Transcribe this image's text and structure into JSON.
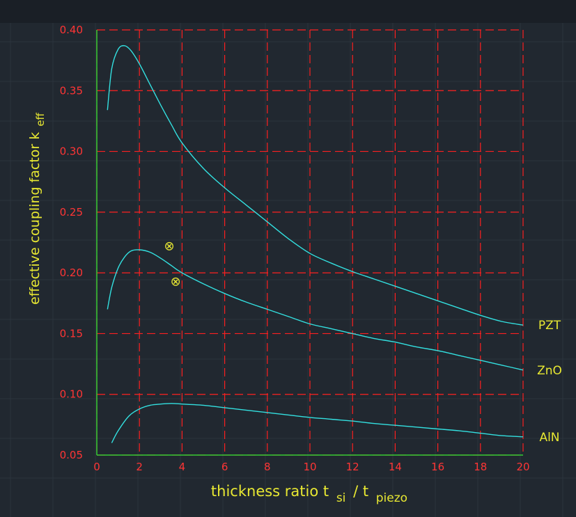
{
  "chart_data": {
    "type": "line",
    "xlabel": {
      "main": "thickness ratio t",
      "sub1": "si",
      "sep": "/ t",
      "sub2": "piezo"
    },
    "ylabel": {
      "main": "effective coupling factor k",
      "sub": "eff"
    },
    "xlim": [
      0,
      20
    ],
    "ylim": [
      0.05,
      0.4
    ],
    "x_ticks": [
      "0",
      "2",
      "4",
      "6",
      "8",
      "10",
      "12",
      "14",
      "16",
      "18",
      "20"
    ],
    "y_ticks": [
      "0.05",
      "0.10",
      "0.15",
      "0.20",
      "0.25",
      "0.30",
      "0.35",
      "0.40"
    ],
    "grid": true,
    "series": [
      {
        "name": "PZT",
        "color": "#33e0e0",
        "x": [
          0.5,
          0.7,
          1.0,
          1.3,
          1.6,
          2.0,
          2.5,
          3.0,
          3.5,
          4.0,
          5.0,
          6.0,
          7.0,
          8.0,
          9.0,
          10.0,
          11.0,
          12.0,
          13.0,
          14.0,
          15.0,
          16.0,
          17.0,
          18.0,
          19.0,
          20.0
        ],
        "y": [
          0.334,
          0.368,
          0.384,
          0.387,
          0.383,
          0.372,
          0.355,
          0.338,
          0.322,
          0.307,
          0.286,
          0.27,
          0.256,
          0.242,
          0.228,
          0.216,
          0.208,
          0.201,
          0.195,
          0.189,
          0.183,
          0.177,
          0.171,
          0.165,
          0.16,
          0.157
        ]
      },
      {
        "name": "ZnO",
        "color": "#33e0e0",
        "x": [
          0.5,
          0.7,
          1.0,
          1.3,
          1.6,
          2.0,
          2.5,
          3.0,
          3.5,
          4.0,
          5.0,
          6.0,
          7.0,
          8.0,
          9.0,
          10.0,
          11.0,
          12.0,
          13.0,
          14.0,
          15.0,
          16.0,
          17.0,
          18.0,
          19.0,
          20.0
        ],
        "y": [
          0.17,
          0.188,
          0.204,
          0.213,
          0.218,
          0.219,
          0.217,
          0.212,
          0.206,
          0.2,
          0.191,
          0.183,
          0.176,
          0.17,
          0.164,
          0.158,
          0.154,
          0.15,
          0.146,
          0.143,
          0.139,
          0.136,
          0.132,
          0.128,
          0.124,
          0.12
        ]
      },
      {
        "name": "AlN",
        "color": "#33e0e0",
        "x": [
          0.7,
          1.0,
          1.5,
          2.0,
          2.5,
          3.0,
          3.5,
          4.0,
          5.0,
          6.0,
          7.0,
          8.0,
          9.0,
          10.0,
          11.0,
          12.0,
          13.0,
          14.0,
          15.0,
          16.0,
          17.0,
          18.0,
          19.0,
          20.0
        ],
        "y": [
          0.06,
          0.07,
          0.082,
          0.088,
          0.091,
          0.092,
          0.0925,
          0.092,
          0.091,
          0.089,
          0.087,
          0.085,
          0.083,
          0.081,
          0.0795,
          0.078,
          0.076,
          0.0745,
          0.073,
          0.0715,
          0.07,
          0.068,
          0.066,
          0.065
        ]
      }
    ],
    "markers": [
      {
        "symbol": "⊗",
        "x": 3.4,
        "y": 0.222,
        "color": "#e8e832"
      },
      {
        "symbol": "⊗",
        "x": 3.7,
        "y": 0.193,
        "color": "#e8e832"
      }
    ],
    "colors": {
      "grid": "#ff2020",
      "axis": "#33cc33",
      "labels": "#e8e832",
      "ticks": "#ff3535"
    }
  }
}
